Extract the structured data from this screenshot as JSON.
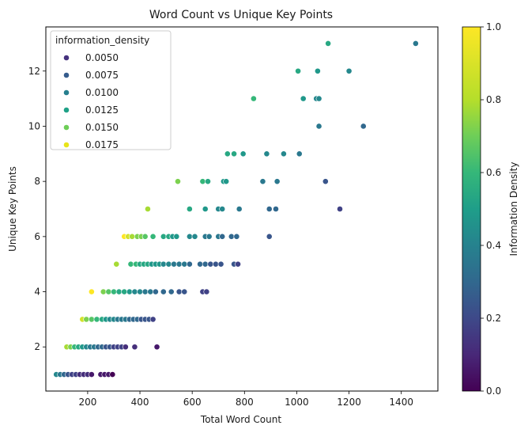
{
  "chart_data": {
    "type": "scatter",
    "title": "Word Count vs Unique Key Points",
    "xlabel": "Total Word Count",
    "ylabel": "Unique Key Points",
    "xlim": [
      40,
      1540
    ],
    "ylim": [
      0.4,
      13.6
    ],
    "xticks": [
      200,
      400,
      600,
      800,
      1000,
      1200,
      1400
    ],
    "yticks": [
      2,
      4,
      6,
      8,
      10,
      12
    ],
    "grid": false,
    "legend": {
      "title": "information_density",
      "placement": "top-left",
      "entries": [
        "0.0050",
        "0.0075",
        "0.0100",
        "0.0125",
        "0.0150",
        "0.0175"
      ],
      "colors": [
        "#46327e",
        "#365c8d",
        "#277f8e",
        "#1fa187",
        "#6ece58",
        "#e8e419"
      ]
    },
    "colorbar": {
      "label": "Information Density",
      "range": [
        0,
        1
      ],
      "ticks": [
        "0.0",
        "0.2",
        "0.4",
        "0.6",
        "0.8",
        "1.0"
      ],
      "colormap": "viridis"
    },
    "points": [
      [
        80,
        1,
        0.01
      ],
      [
        95,
        1,
        0.009
      ],
      [
        110,
        1,
        0.008
      ],
      [
        125,
        1,
        0.007
      ],
      [
        140,
        1,
        0.006
      ],
      [
        155,
        1,
        0.006
      ],
      [
        170,
        1,
        0.005
      ],
      [
        185,
        1,
        0.005
      ],
      [
        200,
        1,
        0.005
      ],
      [
        215,
        1,
        0.004
      ],
      [
        250,
        1,
        0.004
      ],
      [
        265,
        1,
        0.004
      ],
      [
        280,
        1,
        0.004
      ],
      [
        295,
        1,
        0.003
      ],
      [
        120,
        2,
        0.016
      ],
      [
        135,
        2,
        0.015
      ],
      [
        150,
        2,
        0.013
      ],
      [
        165,
        2,
        0.012
      ],
      [
        180,
        2,
        0.011
      ],
      [
        195,
        2,
        0.01
      ],
      [
        210,
        2,
        0.009
      ],
      [
        225,
        2,
        0.009
      ],
      [
        240,
        2,
        0.008
      ],
      [
        255,
        2,
        0.008
      ],
      [
        270,
        2,
        0.007
      ],
      [
        285,
        2,
        0.007
      ],
      [
        300,
        2,
        0.006
      ],
      [
        315,
        2,
        0.006
      ],
      [
        330,
        2,
        0.006
      ],
      [
        345,
        2,
        0.005
      ],
      [
        380,
        2,
        0.005
      ],
      [
        465,
        2,
        0.004
      ],
      [
        180,
        3,
        0.017
      ],
      [
        195,
        3,
        0.015
      ],
      [
        215,
        3,
        0.014
      ],
      [
        235,
        3,
        0.013
      ],
      [
        255,
        3,
        0.012
      ],
      [
        270,
        3,
        0.011
      ],
      [
        285,
        3,
        0.01
      ],
      [
        300,
        3,
        0.01
      ],
      [
        315,
        3,
        0.009
      ],
      [
        330,
        3,
        0.009
      ],
      [
        345,
        3,
        0.009
      ],
      [
        360,
        3,
        0.008
      ],
      [
        375,
        3,
        0.008
      ],
      [
        390,
        3,
        0.008
      ],
      [
        405,
        3,
        0.007
      ],
      [
        420,
        3,
        0.007
      ],
      [
        435,
        3,
        0.007
      ],
      [
        450,
        3,
        0.006
      ],
      [
        215,
        4,
        0.018
      ],
      [
        260,
        4,
        0.015
      ],
      [
        280,
        4,
        0.014
      ],
      [
        300,
        4,
        0.013
      ],
      [
        320,
        4,
        0.012
      ],
      [
        340,
        4,
        0.012
      ],
      [
        360,
        4,
        0.011
      ],
      [
        380,
        4,
        0.01
      ],
      [
        400,
        4,
        0.01
      ],
      [
        420,
        4,
        0.009
      ],
      [
        440,
        4,
        0.009
      ],
      [
        460,
        4,
        0.008
      ],
      [
        490,
        4,
        0.008
      ],
      [
        520,
        4,
        0.008
      ],
      [
        550,
        4,
        0.007
      ],
      [
        570,
        4,
        0.007
      ],
      [
        640,
        4,
        0.006
      ],
      [
        655,
        4,
        0.006
      ],
      [
        310,
        5,
        0.016
      ],
      [
        365,
        5,
        0.013
      ],
      [
        385,
        5,
        0.013
      ],
      [
        400,
        5,
        0.012
      ],
      [
        415,
        5,
        0.012
      ],
      [
        430,
        5,
        0.012
      ],
      [
        445,
        5,
        0.011
      ],
      [
        460,
        5,
        0.011
      ],
      [
        475,
        5,
        0.011
      ],
      [
        490,
        5,
        0.01
      ],
      [
        510,
        5,
        0.01
      ],
      [
        530,
        5,
        0.009
      ],
      [
        550,
        5,
        0.009
      ],
      [
        570,
        5,
        0.009
      ],
      [
        590,
        5,
        0.008
      ],
      [
        630,
        5,
        0.008
      ],
      [
        650,
        5,
        0.008
      ],
      [
        670,
        5,
        0.007
      ],
      [
        690,
        5,
        0.007
      ],
      [
        710,
        5,
        0.007
      ],
      [
        760,
        5,
        0.007
      ],
      [
        775,
        5,
        0.006
      ],
      [
        340,
        6,
        0.018
      ],
      [
        355,
        6,
        0.017
      ],
      [
        370,
        6,
        0.016
      ],
      [
        390,
        6,
        0.015
      ],
      [
        405,
        6,
        0.015
      ],
      [
        420,
        6,
        0.014
      ],
      [
        450,
        6,
        0.013
      ],
      [
        490,
        6,
        0.012
      ],
      [
        510,
        6,
        0.012
      ],
      [
        525,
        6,
        0.011
      ],
      [
        540,
        6,
        0.011
      ],
      [
        590,
        6,
        0.01
      ],
      [
        610,
        6,
        0.01
      ],
      [
        650,
        6,
        0.009
      ],
      [
        665,
        6,
        0.009
      ],
      [
        700,
        6,
        0.009
      ],
      [
        715,
        6,
        0.008
      ],
      [
        750,
        6,
        0.008
      ],
      [
        770,
        6,
        0.008
      ],
      [
        895,
        6,
        0.007
      ],
      [
        430,
        7,
        0.016
      ],
      [
        590,
        7,
        0.012
      ],
      [
        650,
        7,
        0.011
      ],
      [
        700,
        7,
        0.01
      ],
      [
        715,
        7,
        0.01
      ],
      [
        780,
        7,
        0.009
      ],
      [
        895,
        7,
        0.008
      ],
      [
        920,
        7,
        0.008
      ],
      [
        1165,
        7,
        0.006
      ],
      [
        545,
        8,
        0.015
      ],
      [
        640,
        8,
        0.013
      ],
      [
        660,
        8,
        0.012
      ],
      [
        720,
        8,
        0.011
      ],
      [
        730,
        8,
        0.011
      ],
      [
        870,
        8,
        0.009
      ],
      [
        925,
        8,
        0.009
      ],
      [
        1110,
        8,
        0.007
      ],
      [
        735,
        9,
        0.012
      ],
      [
        760,
        9,
        0.012
      ],
      [
        795,
        9,
        0.011
      ],
      [
        885,
        9,
        0.01
      ],
      [
        950,
        9,
        0.01
      ],
      [
        1010,
        9,
        0.009
      ],
      [
        1085,
        10,
        0.009
      ],
      [
        1255,
        10,
        0.008
      ],
      [
        835,
        11,
        0.013
      ],
      [
        1025,
        11,
        0.011
      ],
      [
        1075,
        11,
        0.01
      ],
      [
        1085,
        11,
        0.01
      ],
      [
        1005,
        12,
        0.012
      ],
      [
        1080,
        12,
        0.011
      ],
      [
        1200,
        12,
        0.01
      ],
      [
        1120,
        13,
        0.012
      ],
      [
        1455,
        13,
        0.009
      ]
    ]
  }
}
